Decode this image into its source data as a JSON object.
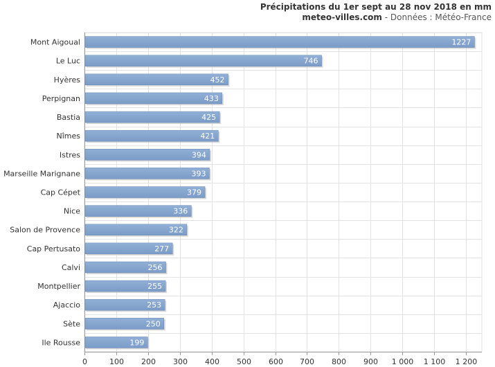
{
  "chart_data": {
    "type": "bar",
    "orientation": "horizontal",
    "title": "Précipitations du 1er sept au 28 nov 2018 en mm",
    "subtitle": {
      "site": "meteo-villes.com",
      "source": " - Données : Météo-France"
    },
    "categories": [
      "Mont Aigoual",
      "Le Luc",
      "Hyères",
      "Perpignan",
      "Bastia",
      "Nîmes",
      "Istres",
      "Marseille Marignane",
      "Cap Cépet",
      "Nice",
      "Salon de Provence",
      "Cap Pertusato",
      "Calvi",
      "Montpellier",
      "Ajaccio",
      "Sète",
      "Ile Rousse"
    ],
    "values": [
      1227,
      746,
      452,
      433,
      425,
      421,
      394,
      393,
      379,
      336,
      322,
      277,
      256,
      255,
      253,
      250,
      199
    ],
    "data_labels": [
      "1227",
      "746",
      "452",
      "433",
      "425",
      "421",
      "394",
      "393",
      "379",
      "336",
      "322",
      "277",
      "256",
      "255",
      "253",
      "250",
      "199"
    ],
    "x_ticks": [
      0,
      100,
      200,
      300,
      400,
      500,
      600,
      700,
      800,
      900,
      1000,
      1100,
      1200
    ],
    "x_tick_labels": [
      "0",
      "100",
      "200",
      "300",
      "400",
      "500",
      "600",
      "700",
      "800",
      "900",
      "1 000",
      "1 100",
      "1 200"
    ],
    "xlim": [
      0,
      1250
    ],
    "grid": true,
    "legend": "none",
    "colors": {
      "bar": "#7b9cc7",
      "bar_top": "#92b0d6",
      "bar_shadow": "#c9c9c9",
      "grid": "#e3e3e3",
      "axis": "#999999"
    }
  }
}
